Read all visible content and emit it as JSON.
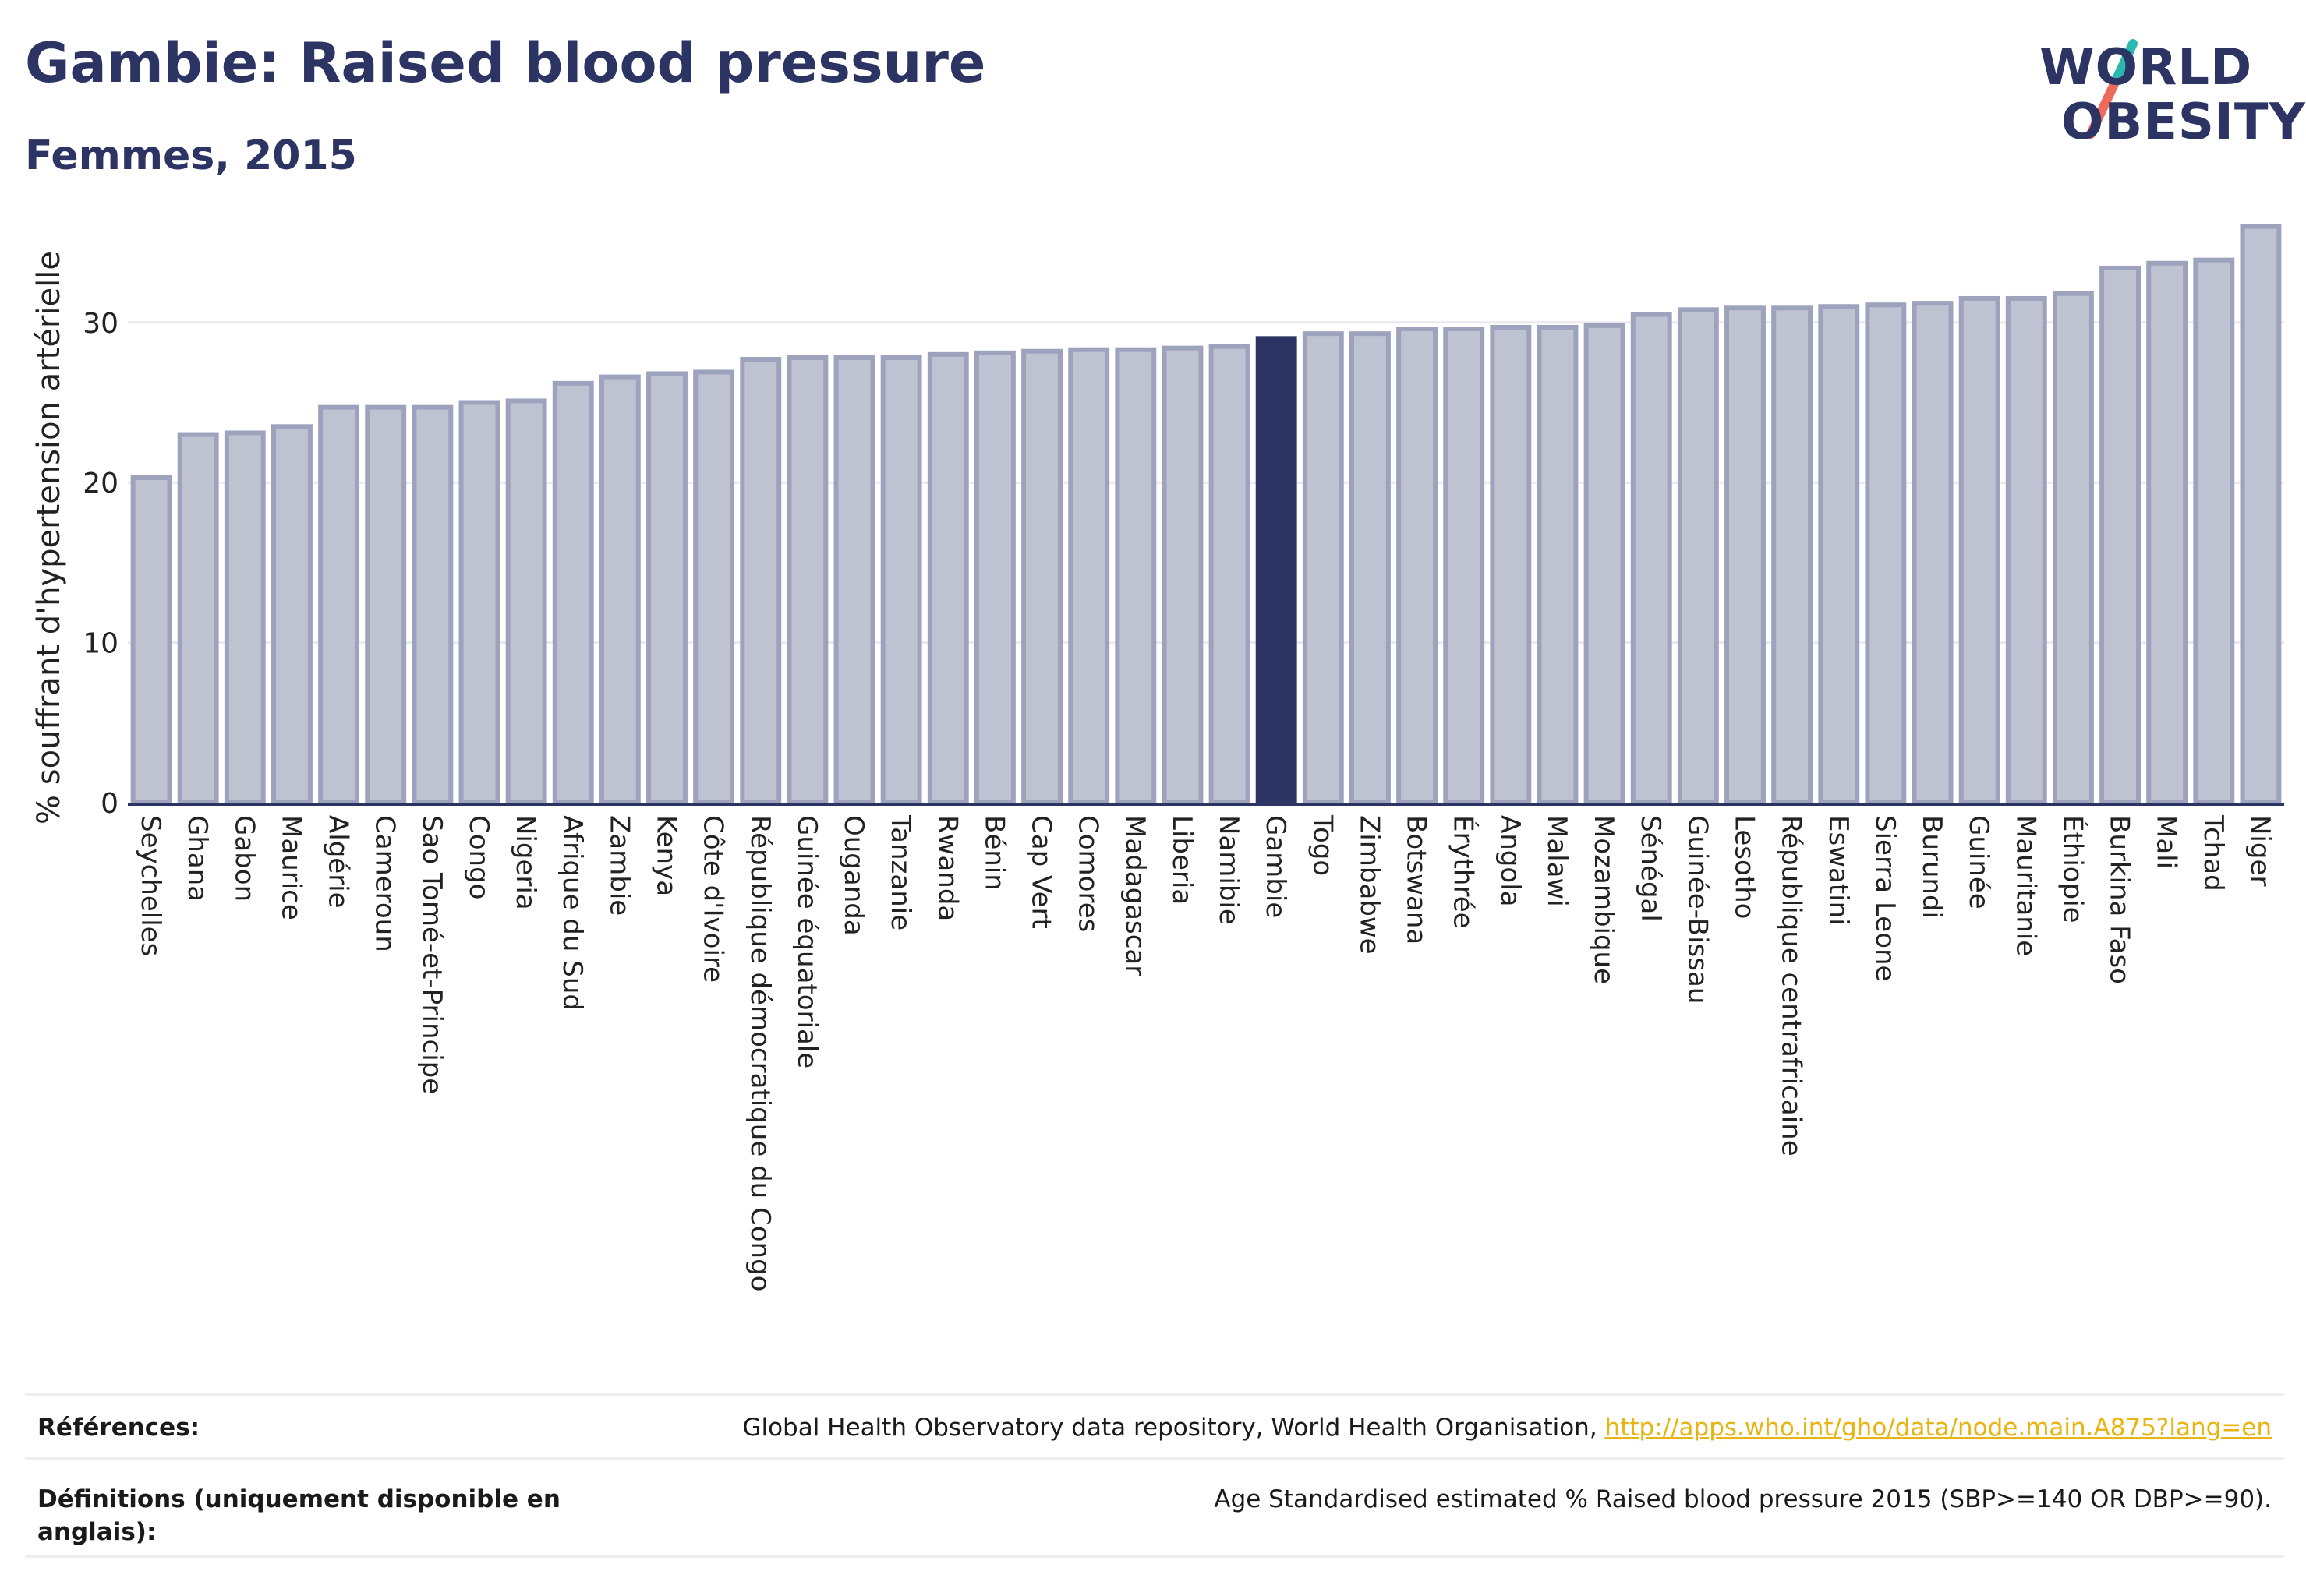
{
  "header": {
    "title": "Gambie: Raised blood pressure",
    "subtitle": "Femmes, 2015"
  },
  "logo": {
    "line1": "WORLD",
    "line2": "OBESITY",
    "colors": {
      "text": "#2b3462",
      "slash_top": "#2bb8b0",
      "slash_bottom": "#ee6a5a"
    }
  },
  "chart_data": {
    "type": "bar",
    "ylabel": "% souffrant d'hypertension artérielle",
    "ylim": [
      0,
      37
    ],
    "yticks": [
      0,
      10,
      20,
      30
    ],
    "grid": true,
    "highlight": "Gambie",
    "colors": {
      "bar": "#bfc2d1",
      "bar_border": "#9ea3bd",
      "highlight": "#2b3462"
    },
    "categories": [
      "Seychelles",
      "Ghana",
      "Gabon",
      "Maurice",
      "Algérie",
      "Cameroun",
      "Sao Tomé-et-Principe",
      "Congo",
      "Nigeria",
      "Afrique du Sud",
      "Zambie",
      "Kenya",
      "Côte d'Ivoire",
      "République démocratique du Congo",
      "Guinée équatoriale",
      "Ouganda",
      "Tanzanie",
      "Rwanda",
      "Bénin",
      "Cap Vert",
      "Comores",
      "Madagascar",
      "Liberia",
      "Namibie",
      "Gambie",
      "Togo",
      "Zimbabwe",
      "Botswana",
      "Érythrée",
      "Angola",
      "Malawi",
      "Mozambique",
      "Sénégal",
      "Guinée-Bissau",
      "Lesotho",
      "République centrafricaine",
      "Eswatini",
      "Sierra Leone",
      "Burundi",
      "Guinée",
      "Mauritanie",
      "Éthiopie",
      "Burkina Faso",
      "Mali",
      "Tchad",
      "Niger"
    ],
    "values": [
      20.3,
      23.0,
      23.1,
      23.5,
      24.7,
      24.7,
      24.7,
      25.0,
      25.1,
      26.2,
      26.6,
      26.8,
      26.9,
      27.7,
      27.8,
      27.8,
      27.8,
      28.0,
      28.1,
      28.2,
      28.3,
      28.3,
      28.4,
      28.5,
      29.0,
      29.3,
      29.3,
      29.6,
      29.6,
      29.7,
      29.7,
      29.8,
      30.5,
      30.8,
      30.9,
      30.9,
      31.0,
      31.1,
      31.2,
      31.5,
      31.5,
      31.8,
      33.4,
      33.7,
      33.9,
      36.0
    ]
  },
  "footer": {
    "references_label": "Références:",
    "references_text": "Global Health Observatory data repository, World Health Organisation, ",
    "references_link": "http://apps.who.int/gho/data/node.main.A875?lang=en",
    "definitions_label": "Définitions (uniquement disponible en anglais):",
    "definitions_text": "Age Standardised estimated % Raised blood pressure 2015 (SBP>=140 OR DBP>=90)."
  }
}
